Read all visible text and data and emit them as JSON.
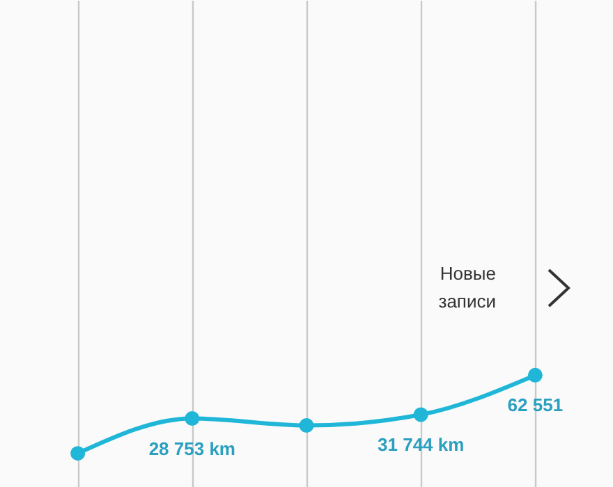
{
  "chart_data": {
    "type": "line",
    "categories": [
      null,
      null,
      null,
      null,
      null
    ],
    "series": [
      {
        "color": "#1fb6d8",
        "values": [
          1500,
          28753,
          23300,
          31744,
          62551
        ],
        "value_labels": [
          null,
          "28 753 km",
          null,
          "31 744 km",
          "62 551"
        ]
      }
    ],
    "annotations": [
      "Новые записи"
    ],
    "grid": "x",
    "tick_labels": false,
    "marker": "circle"
  }
}
